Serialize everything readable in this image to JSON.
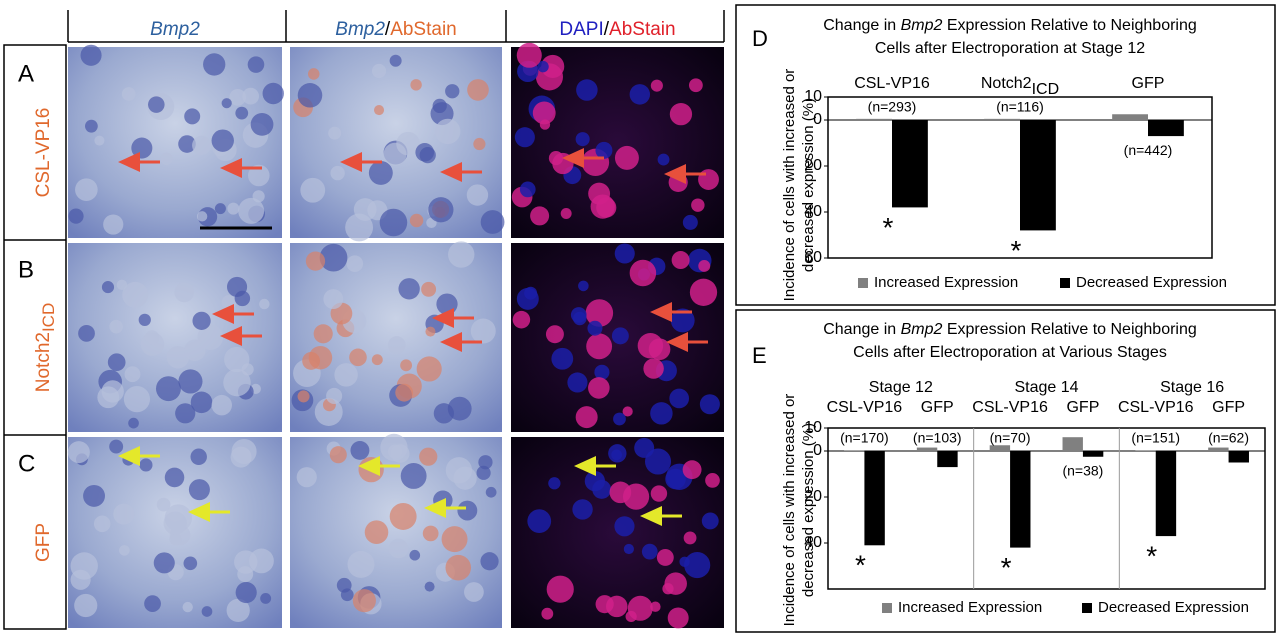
{
  "figure": {
    "columns": [
      {
        "parts": [
          {
            "text": "Bmp2",
            "style": "gene"
          }
        ]
      },
      {
        "parts": [
          {
            "text": "Bmp2",
            "style": "gene"
          },
          {
            "text": "/",
            "style": "plain"
          },
          {
            "text": "AbStain",
            "style": "stain"
          }
        ]
      },
      {
        "parts": [
          {
            "text": "DAPI",
            "style": "dapi"
          },
          {
            "text": "/",
            "style": "plain"
          },
          {
            "text": "AbStain",
            "style": "red"
          }
        ]
      }
    ],
    "rows": [
      {
        "letter": "A",
        "label": "CSL-VP16",
        "label_sub": null
      },
      {
        "letter": "B",
        "label": "Notch2",
        "label_sub": "ICD"
      },
      {
        "letter": "C",
        "label": "GFP",
        "label_sub": null
      }
    ]
  },
  "chart_data": [
    {
      "type": "bar",
      "panel": "D",
      "title_lines": [
        [
          {
            "text": "Change in ",
            "italic": false
          },
          {
            "text": "Bmp2",
            "italic": true
          },
          {
            "text": " Expression Relative to Neighboring",
            "italic": false
          }
        ],
        [
          {
            "text": "Cells after Electroporation at Stage 12",
            "italic": false
          }
        ]
      ],
      "ylabel": [
        "Incidence of cells with increased or",
        "decreased expression (%)"
      ],
      "categories": [
        "CSL-VP16",
        "Notch2",
        "GFP"
      ],
      "category_subscripts": [
        null,
        "ICD",
        null
      ],
      "series": [
        {
          "name": "Increased Expression",
          "color": "#808080",
          "direction": "up",
          "values": [
            0.5,
            0.5,
            2.5
          ]
        },
        {
          "name": "Decreased Expression",
          "color": "#000000",
          "direction": "down",
          "values": [
            38,
            48,
            7
          ]
        }
      ],
      "count_labels": [
        "(n=293)",
        "(n=116)",
        "(n=442)"
      ],
      "count_label_positions": [
        "above",
        "above",
        "below"
      ],
      "significance": [
        "*",
        "*",
        null
      ],
      "ylim_up": 10,
      "ylim_down": 60,
      "yticks_up": [
        10
      ],
      "yticks_down": [
        0,
        20,
        40,
        60
      ]
    },
    {
      "type": "bar",
      "panel": "E",
      "title_lines": [
        [
          {
            "text": "Change in ",
            "italic": false
          },
          {
            "text": "Bmp2",
            "italic": true
          },
          {
            "text": " Expression Relative to Neighboring",
            "italic": false
          }
        ],
        [
          {
            "text": "Cells after Electroporation at Various Stages",
            "italic": false
          }
        ]
      ],
      "ylabel": [
        "Incidence of cells with increased or",
        "decreased expression (%)"
      ],
      "group_labels": [
        "Stage 12",
        "Stage 14",
        "Stage 16"
      ],
      "categories": [
        "CSL-VP16",
        "GFP",
        "CSL-VP16",
        "GFP",
        "CSL-VP16",
        "GFP"
      ],
      "category_subscripts": [
        null,
        null,
        null,
        null,
        null,
        null
      ],
      "series": [
        {
          "name": "Increased Expression",
          "color": "#808080",
          "direction": "up",
          "values": [
            0.3,
            1.5,
            2.5,
            6,
            0.3,
            1.5
          ]
        },
        {
          "name": "Decreased Expression",
          "color": "#000000",
          "direction": "down",
          "values": [
            41,
            7,
            42,
            2.5,
            37,
            5
          ]
        }
      ],
      "count_labels": [
        "(n=170)",
        "(n=103)",
        "(n=70)",
        "(n=38)",
        "(n=151)",
        "(n=62)"
      ],
      "count_label_positions": [
        "above",
        "above",
        "above",
        "below",
        "above",
        "above"
      ],
      "significance": [
        "*",
        null,
        "*",
        null,
        "*",
        null
      ],
      "ylim_up": 10,
      "ylim_down": 60,
      "yticks_up": [
        10
      ],
      "yticks_down": [
        0,
        20,
        40
      ]
    }
  ]
}
